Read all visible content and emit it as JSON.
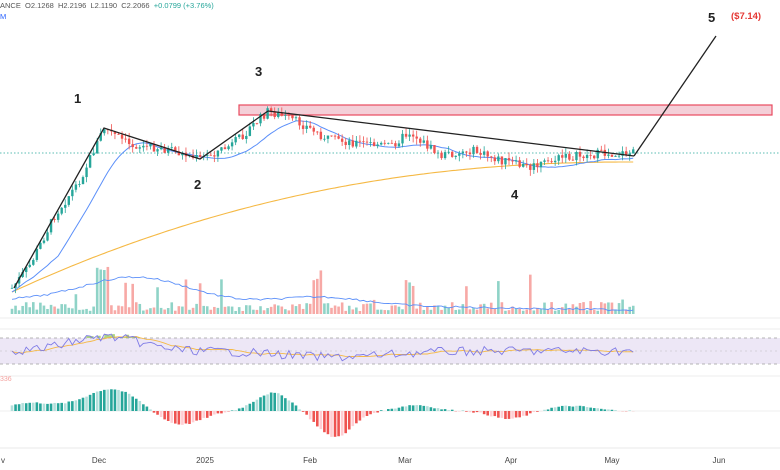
{
  "header": {
    "exchange_fragment": "ANCE",
    "open": "O2.1268",
    "high": "H2.2196",
    "low": "L2.1190",
    "close": "C2.2066",
    "change": "+0.0799 (+3.76%)",
    "second_row": "M"
  },
  "waves": [
    {
      "label": "1"
    },
    {
      "label": "2"
    },
    {
      "label": "3"
    },
    {
      "label": "4"
    },
    {
      "label": "5"
    }
  ],
  "target_label": "($7.14)",
  "macd_fragment": "336",
  "colors": {
    "up": "#26a69a",
    "down": "#ef5350",
    "ma_short": "#5b8ff9",
    "ma_long": "#f5b945",
    "resistance_fill": "#f4cfd8",
    "resistance_border": "#e84a5f",
    "rsi": "#7e7ae6",
    "rsi_band": "#ede7f6",
    "trendline": "#222222"
  },
  "chart_data": {
    "type": "candlestick",
    "x_ticks": [
      "v",
      "Dec",
      "2025",
      "Feb",
      "Mar",
      "Apr",
      "May",
      "Jun"
    ],
    "x_range": [
      "2024-11-01",
      "2025-06-20"
    ],
    "last_close": 2.2066,
    "ohlc_last": {
      "open": 2.1268,
      "high": 2.2196,
      "low": 2.119,
      "close": 2.2066
    },
    "elliott_waves": [
      {
        "label": "1",
        "date": "2024-12-02",
        "price": 2.9
      },
      {
        "label": "2",
        "date": "2024-12-31",
        "price": 1.9
      },
      {
        "label": "3",
        "date": "2025-01-16",
        "price": 3.4
      },
      {
        "label": "4",
        "date": "2025-04-07",
        "price": 1.7
      },
      {
        "label": "5",
        "date": "2025-06-01",
        "price": 7.14
      }
    ],
    "resistance_zone": {
      "from": "2025-01-11",
      "to": "2025-06-20",
      "low": 3.3,
      "high": 3.45
    },
    "descending_trendline": [
      {
        "date": "2025-01-17",
        "price": 3.4
      },
      {
        "date": "2025-05-07",
        "price": 2.2
      }
    ],
    "projection": [
      {
        "date": "2025-05-07",
        "price": 2.2
      },
      {
        "date": "2025-06-01",
        "price": 7.14
      }
    ],
    "indicators": [
      "volume",
      "RSI",
      "MACD histogram"
    ]
  }
}
